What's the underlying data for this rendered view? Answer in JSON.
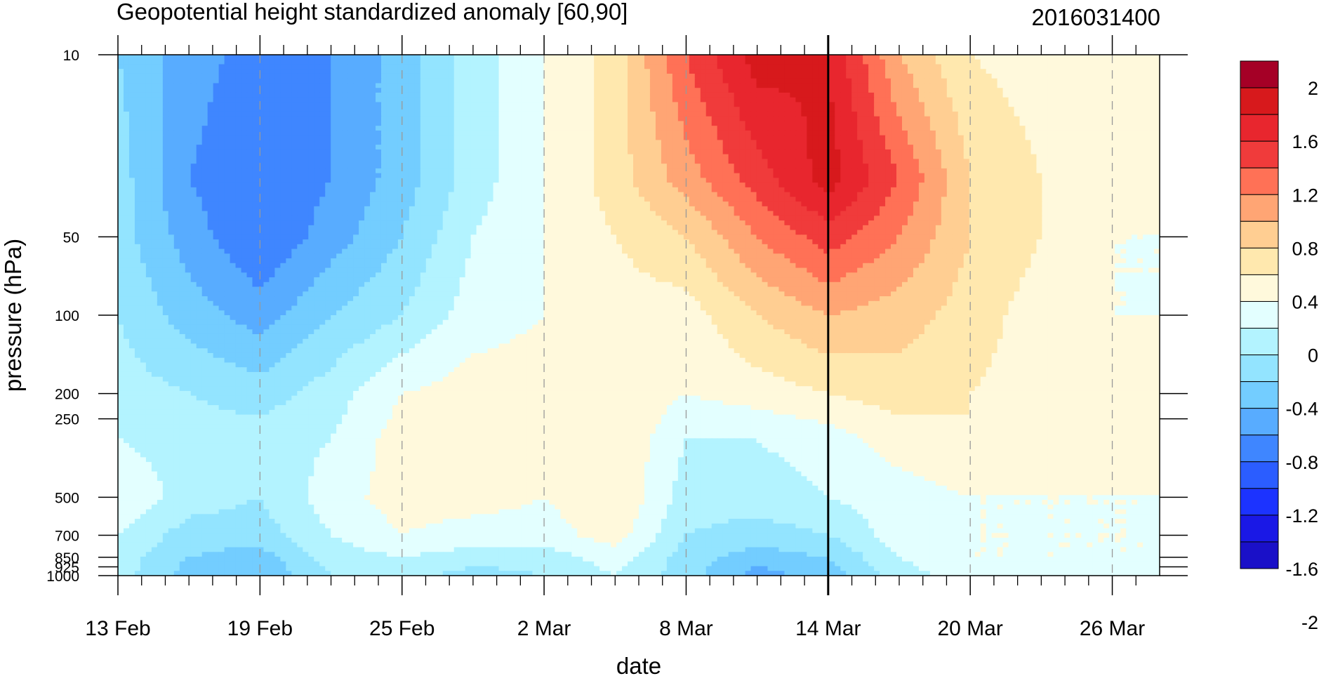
{
  "chart_data": {
    "type": "heatmap",
    "title": "Geopotential height standardized anomaly [60,90]",
    "subtitle": "2016031400",
    "xlabel": "date",
    "ylabel": "pressure (hPa)",
    "x_ticks": [
      "13 Feb",
      "19 Feb",
      "25 Feb",
      "2 Mar",
      "8 Mar",
      "14 Mar",
      "20 Mar",
      "26 Mar"
    ],
    "x_range": [
      "2016-02-13",
      "2016-03-28"
    ],
    "y_ticks": [
      "10",
      "50",
      "100",
      "200",
      "250",
      "500",
      "700",
      "850",
      "925",
      "1000"
    ],
    "y_range": [
      1000,
      10
    ],
    "y_scale": "log",
    "current_date_marker": "14 Mar",
    "colorbar": {
      "labels": [
        "2",
        "1.6",
        "1.2",
        "0.8",
        "0.4",
        "0",
        "-0.4",
        "-0.8",
        "-1.2",
        "-1.6",
        "-2"
      ],
      "levels": [
        2.2,
        2.0,
        1.8,
        1.6,
        1.4,
        1.2,
        1.0,
        0.8,
        0.6,
        0.4,
        0.2,
        0.0,
        -0.2,
        -0.4,
        -0.6,
        -0.8,
        -1.0,
        -1.2,
        -1.4,
        -1.6,
        -1.8,
        -2.0,
        -2.2
      ],
      "colors": [
        "#a50026",
        "#d7191c",
        "#e8262e",
        "#f03b3b",
        "#ff7156",
        "#ffa574",
        "#ffce92",
        "#ffe8ae",
        "#fff9dc",
        "#e3ffff",
        "#b3f3ff",
        "#93e4ff",
        "#73cdff",
        "#58acff",
        "#3f86ff",
        "#2b5dff",
        "#1c33ff",
        "#1a18e6",
        "#1a10c8"
      ]
    },
    "grid": "dashed vertical at date ticks",
    "z_grid": {
      "dates_index": [
        0,
        3,
        6,
        9,
        12,
        15,
        18,
        21,
        24,
        27,
        30,
        33,
        36,
        39,
        42,
        44
      ],
      "pressures": [
        10,
        30,
        50,
        100,
        200,
        300,
        500,
        700,
        850,
        1000
      ],
      "values": [
        [
          -0.2,
          -0.5,
          -0.7,
          -0.6,
          -0.3,
          0.1,
          0.4,
          0.7,
          1.4,
          1.9,
          1.8,
          1.0,
          0.6,
          0.5,
          0.5,
          0.5
        ],
        [
          -0.1,
          -0.6,
          -0.8,
          -0.6,
          -0.3,
          0.1,
          0.4,
          0.7,
          1.1,
          1.5,
          1.9,
          1.4,
          0.8,
          0.6,
          0.5,
          0.5
        ],
        [
          -0.1,
          -0.5,
          -0.8,
          -0.5,
          -0.2,
          0.2,
          0.4,
          0.6,
          0.8,
          1.2,
          1.5,
          1.2,
          0.8,
          0.6,
          0.4,
          0.4
        ],
        [
          0.0,
          -0.3,
          -0.5,
          -0.2,
          0.0,
          0.3,
          0.4,
          0.5,
          0.5,
          0.8,
          1.0,
          0.9,
          0.7,
          0.5,
          0.4,
          0.4
        ],
        [
          0.1,
          0.0,
          -0.1,
          0.1,
          0.4,
          0.5,
          0.5,
          0.6,
          0.4,
          0.5,
          0.6,
          0.7,
          0.6,
          0.5,
          0.5,
          0.4
        ],
        [
          0.2,
          0.1,
          0.1,
          0.2,
          0.5,
          0.5,
          0.5,
          0.6,
          0.2,
          0.2,
          0.3,
          0.5,
          0.6,
          0.5,
          0.5,
          0.4
        ],
        [
          0.4,
          0.1,
          0.0,
          0.3,
          0.5,
          0.5,
          0.4,
          0.6,
          0.1,
          0.1,
          0.2,
          0.3,
          0.4,
          0.4,
          0.4,
          0.4
        ],
        [
          0.2,
          -0.1,
          -0.1,
          0.2,
          0.4,
          0.3,
          0.3,
          0.5,
          0.0,
          -0.1,
          0.0,
          0.3,
          0.4,
          0.4,
          0.4,
          0.4
        ],
        [
          0.1,
          -0.2,
          -0.3,
          0.1,
          0.2,
          0.1,
          0.1,
          0.3,
          -0.1,
          -0.3,
          -0.2,
          0.2,
          0.4,
          0.4,
          0.4,
          0.4
        ],
        [
          0.1,
          -0.3,
          -0.4,
          0.0,
          0.1,
          -0.1,
          0.0,
          0.2,
          -0.1,
          -0.5,
          -0.3,
          0.1,
          0.3,
          0.3,
          0.3,
          0.3
        ]
      ]
    }
  }
}
